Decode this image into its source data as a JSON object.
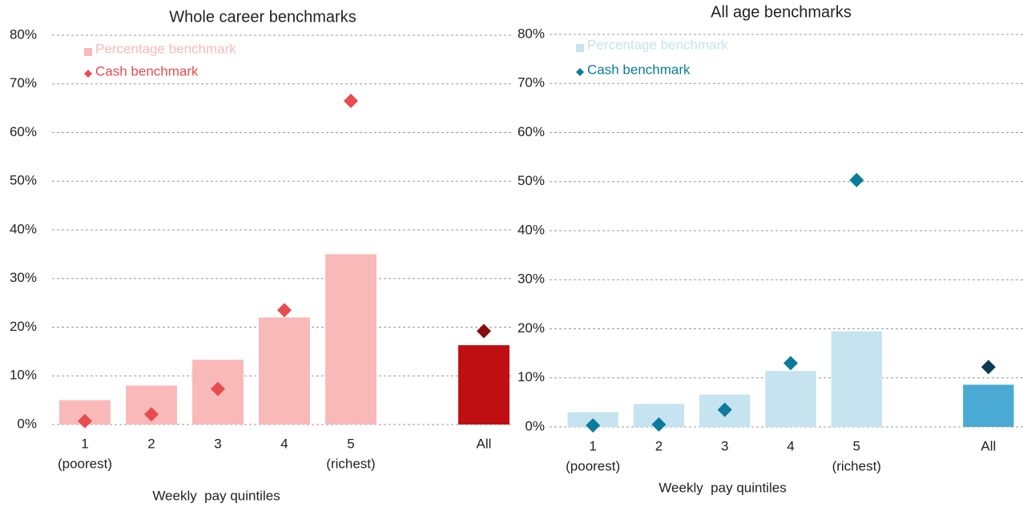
{
  "chart_data": [
    {
      "type": "bar",
      "title": "Whole career benchmarks",
      "x_label": "Weekly  pay quintiles",
      "categories": [
        "1",
        "2",
        "3",
        "4",
        "5",
        null,
        "All"
      ],
      "category_sublabels": [
        "(poorest)",
        null,
        null,
        null,
        "(richest)",
        null,
        null
      ],
      "series": [
        {
          "name": "Percentage benchmark",
          "kind": "bar",
          "color": "#f9b9b9",
          "colors": [
            "#f9b9b9",
            "#f9b9b9",
            "#f9b9b9",
            "#f9b9b9",
            "#f9b9b9",
            null,
            "#c00f12"
          ],
          "values": [
            5,
            8,
            13.3,
            22,
            35,
            null,
            16.3
          ]
        },
        {
          "name": "Cash benchmark",
          "kind": "diamond",
          "color": "#e84c4f",
          "colors": [
            "#e84c4f",
            "#e84c4f",
            "#e84c4f",
            "#e84c4f",
            "#e84c4f",
            null,
            "#8b0d10"
          ],
          "values": [
            0.7,
            2.1,
            7.3,
            23.5,
            66.5,
            null,
            19.2
          ]
        }
      ],
      "ylim": [
        0,
        80
      ],
      "yticks": [
        {
          "value": 0,
          "label": "0%"
        },
        {
          "value": 10,
          "label": "10%"
        },
        {
          "value": 20,
          "label": "20%"
        },
        {
          "value": 30,
          "label": "30%"
        },
        {
          "value": 40,
          "label": "40%"
        },
        {
          "value": 50,
          "label": "50%"
        },
        {
          "value": 60,
          "label": "60%"
        },
        {
          "value": 70,
          "label": "70%"
        },
        {
          "value": 80,
          "label": "80%"
        }
      ],
      "grid": true,
      "legend": "upper left"
    },
    {
      "type": "bar",
      "title": "All age benchmarks",
      "x_label": "Weekly  pay quintiles",
      "categories": [
        "1",
        "2",
        "3",
        "4",
        "5",
        null,
        "All"
      ],
      "category_sublabels": [
        "(poorest)",
        null,
        null,
        null,
        "(richest)",
        null,
        null
      ],
      "series": [
        {
          "name": "Percentage benchmark",
          "kind": "bar",
          "color": "#c5e4f0",
          "colors": [
            "#c5e4f0",
            "#c5e4f0",
            "#c5e4f0",
            "#c5e4f0",
            "#c5e4f0",
            null,
            "#4aaad4"
          ],
          "values": [
            3,
            4.7,
            6.6,
            11.4,
            19.5,
            null,
            8.6
          ]
        },
        {
          "name": "Cash benchmark",
          "kind": "diamond",
          "color": "#0a7b9b",
          "colors": [
            "#0a7b9b",
            "#0a7b9b",
            "#0a7b9b",
            "#0a7b9b",
            "#0a7b9b",
            null,
            "#0b3b52"
          ],
          "values": [
            0.3,
            0.5,
            3.5,
            13,
            50.3,
            null,
            12.2
          ]
        }
      ],
      "ylim": [
        0,
        80
      ],
      "yticks": [
        {
          "value": 0,
          "label": "0%"
        },
        {
          "value": 10,
          "label": "10%"
        },
        {
          "value": 20,
          "label": "20%"
        },
        {
          "value": 30,
          "label": "30%"
        },
        {
          "value": 40,
          "label": "40%"
        },
        {
          "value": 50,
          "label": "50%"
        },
        {
          "value": 60,
          "label": "60%"
        },
        {
          "value": 70,
          "label": "70%"
        },
        {
          "value": 80,
          "label": "80%"
        }
      ],
      "grid": true,
      "legend": "upper left"
    }
  ]
}
